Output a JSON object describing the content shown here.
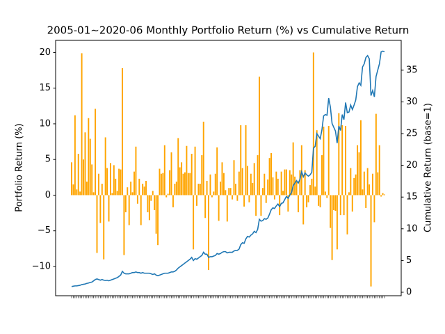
{
  "chart_data": {
    "type": "bar-line",
    "title": "2005-01~2020-06 Monthly Portfolio Return (%) vs Cumulative Return",
    "ylabel": "Portfolio Return (%)",
    "y2label": "Cumulative Return (base=1)",
    "categories": [
      null,
      null,
      null,
      null,
      null,
      null,
      null,
      null,
      null,
      null,
      null,
      null,
      null,
      null,
      null,
      null,
      null,
      null,
      null,
      null,
      null,
      null,
      null,
      null,
      null,
      null,
      null,
      null,
      null,
      null,
      null,
      null,
      null,
      null,
      null,
      null,
      null,
      null,
      null,
      null,
      null,
      null,
      null,
      null,
      null,
      null,
      null,
      null,
      null,
      null,
      null,
      null,
      null,
      null,
      null,
      null,
      null,
      null,
      null,
      null,
      null,
      null,
      null,
      null,
      null,
      null,
      null,
      null,
      null,
      null,
      null,
      null,
      null,
      null,
      null,
      null,
      null,
      null,
      null,
      null,
      null,
      null,
      null,
      null,
      null,
      null,
      null,
      null,
      null,
      null,
      null,
      null,
      null,
      null,
      null,
      null,
      null,
      null,
      null,
      null,
      null,
      null,
      null,
      null,
      null,
      null,
      null,
      null,
      null,
      null,
      null,
      null,
      null,
      null,
      null,
      null,
      null,
      null,
      null,
      null,
      null,
      null,
      null,
      null,
      null,
      null,
      null,
      null,
      null,
      null,
      null,
      null,
      null,
      null,
      null,
      null,
      null,
      null,
      null,
      null,
      null,
      null,
      null,
      null,
      null,
      null,
      null,
      null,
      null,
      null,
      null,
      null,
      null,
      null,
      null,
      null,
      null,
      null,
      null,
      null,
      null,
      null,
      null,
      null,
      null,
      null,
      null,
      null,
      null,
      null,
      null,
      null,
      null,
      null,
      null,
      null,
      null,
      null,
      null,
      null,
      null,
      null,
      null,
      null,
      null,
      null
    ],
    "series": [
      {
        "type": "bar",
        "color": "#ffa500",
        "values": [
          4.6,
          1.5,
          11.2,
          0.8,
          5.8,
          0.5,
          19.9,
          5.0,
          8.8,
          1.9,
          10.8,
          7.9,
          4.3,
          0.4,
          12.1,
          -8.1,
          3.0,
          -3.9,
          1.6,
          -9.0,
          8.1,
          3.8,
          -3.7,
          4.5,
          0.3,
          4.2,
          2.3,
          0.6,
          3.7,
          3.6,
          17.8,
          -8.4,
          -2.4,
          1.1,
          -4.2,
          1.9,
          0.4,
          3.3,
          6.8,
          -1.2,
          2.3,
          -4.2,
          1.6,
          1.2,
          2.0,
          -2.4,
          -3.5,
          -0.8,
          0.6,
          -2.1,
          -5.4,
          -7.0,
          3.7,
          3.0,
          3.1,
          7.0,
          -0.3,
          0.2,
          3.5,
          6.0,
          -1.7,
          1.6,
          1.9,
          8.0,
          3.9,
          4.6,
          3.0,
          3.2,
          6.9,
          3.1,
          3.1,
          5.8,
          -7.6,
          6.8,
          -1.5,
          1.6,
          1.6,
          5.6,
          10.3,
          -3.2,
          2.0,
          -10.5,
          2.9,
          -0.3,
          0.5,
          3.0,
          6.7,
          -3.6,
          1.9,
          4.6,
          3.1,
          0.7,
          -3.7,
          1.0,
          1.0,
          -0.6,
          4.9,
          1.6,
          -0.8,
          3.3,
          9.8,
          3.8,
          -1.6,
          9.8,
          4.1,
          -1.0,
          3.0,
          1.7,
          4.5,
          -2.9,
          5.6,
          16.6,
          -2.9,
          1.0,
          3.0,
          -1.1,
          2.2,
          5.2,
          5.9,
          2.5,
          -0.6,
          3.3,
          2.3,
          -2.8,
          3.3,
          0.6,
          3.6,
          3.6,
          -2.3,
          3.5,
          2.9,
          7.4,
          2.6,
          2.0,
          -2.4,
          3.5,
          7.0,
          -4.1,
          3.5,
          -1.7,
          -1.0,
          1.4,
          2.3,
          20.0,
          1.2,
          9.1,
          -1.5,
          -1.7,
          5.6,
          9.6,
          0.5,
          -0.4,
          9.7,
          -4.6,
          -9.1,
          -2.1,
          -2.2,
          -7.6,
          11.5,
          -2.8,
          9.8,
          -2.8,
          9.7,
          -5.5,
          0.4,
          3.8,
          -2.3,
          2.4,
          2.9,
          7.0,
          6.0,
          10.5,
          0.8,
          3.3,
          -1.8,
          3.8,
          1.5,
          -12.8,
          3.0,
          -3.8,
          11.4,
          3.2,
          7.0,
          -0.2,
          0.3,
          0.1
        ]
      },
      {
        "type": "line",
        "axis": "y2",
        "color": "#1f77b4",
        "values": [
          0.9,
          0.95,
          1.0,
          1.0,
          1.05,
          1.1,
          1.2,
          1.25,
          1.3,
          1.4,
          1.45,
          1.55,
          1.6,
          1.8,
          2.0,
          2.1,
          2.0,
          1.9,
          2.0,
          1.9,
          1.85,
          1.9,
          1.8,
          1.9,
          2.0,
          2.1,
          2.2,
          2.3,
          2.5,
          2.7,
          3.3,
          3.0,
          2.9,
          2.9,
          2.9,
          3.0,
          3.1,
          3.1,
          3.2,
          3.1,
          3.1,
          3.0,
          3.1,
          3.0,
          3.0,
          3.0,
          3.0,
          2.9,
          2.8,
          2.9,
          2.7,
          2.6,
          2.7,
          2.8,
          2.9,
          3.0,
          3.0,
          3.0,
          3.1,
          3.2,
          3.2,
          3.3,
          3.5,
          3.8,
          4.0,
          4.2,
          4.4,
          4.6,
          4.8,
          5.0,
          5.2,
          5.5,
          5.0,
          5.3,
          5.2,
          5.4,
          5.6,
          5.8,
          6.3,
          6.0,
          6.0,
          5.5,
          5.6,
          5.6,
          5.7,
          5.8,
          6.1,
          6.0,
          6.1,
          6.3,
          6.4,
          6.4,
          6.2,
          6.3,
          6.3,
          6.3,
          6.5,
          6.6,
          6.6,
          6.8,
          7.5,
          7.8,
          7.7,
          8.4,
          8.8,
          8.7,
          9.0,
          9.2,
          9.6,
          9.4,
          9.9,
          11.5,
          11.2,
          11.3,
          11.6,
          11.5,
          11.7,
          12.3,
          13.0,
          13.3,
          13.2,
          13.6,
          13.9,
          13.5,
          14.0,
          14.1,
          14.6,
          15.1,
          14.8,
          15.3,
          15.7,
          16.8,
          17.2,
          17.6,
          17.2,
          17.8,
          19.0,
          18.2,
          18.8,
          18.5,
          18.3,
          18.5,
          18.9,
          22.7,
          23.0,
          25.0,
          24.6,
          24.2,
          25.6,
          27.8,
          28.0,
          27.9,
          30.6,
          29.2,
          26.6,
          26.0,
          25.4,
          23.5,
          26.2,
          25.5,
          28.0,
          27.2,
          29.9,
          28.3,
          28.4,
          29.5,
          28.8,
          29.5,
          30.3,
          32.4,
          33.0,
          32.6,
          35.5,
          36.0,
          37.0,
          37.3,
          36.8,
          31.0,
          31.8,
          30.8,
          34.0,
          35.0,
          36.0,
          37.9,
          38.0,
          37.9
        ]
      }
    ],
    "ylim": [
      -14.1,
      21.7
    ],
    "yticks": [
      {
        "value": -10,
        "label": "−10"
      },
      {
        "value": -5,
        "label": "−5"
      },
      0,
      5,
      10,
      15,
      20
    ],
    "y2lim": [
      -0.55,
      39.7
    ],
    "y2ticks": [
      0,
      5,
      10,
      15,
      20,
      25,
      30,
      35
    ]
  }
}
